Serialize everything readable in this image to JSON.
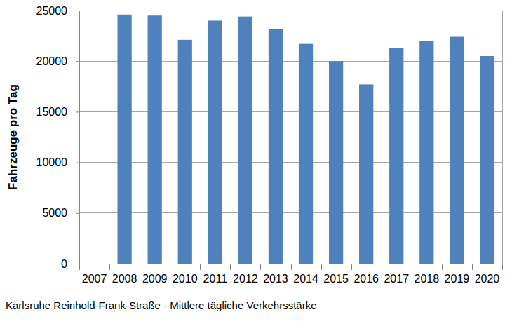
{
  "chart_data": {
    "type": "bar",
    "title": "Karlsruhe Reinhold-Frank-Straße - Mittlere tägliche Verkehrsstärke",
    "y_label": "Fahrzeuge pro Tag",
    "categories": [
      "2007",
      "2008",
      "2009",
      "2010",
      "2011",
      "2012",
      "2013",
      "2014",
      "2015",
      "2016",
      "2017",
      "2018",
      "2019",
      "2020"
    ],
    "values": [
      null,
      24600,
      24500,
      22100,
      24000,
      24400,
      23200,
      21700,
      20000,
      17700,
      21300,
      22000,
      22400,
      20500
    ],
    "color": "#4f81bd",
    "ylim": [
      0,
      25000
    ],
    "yticks": [
      0,
      5000,
      10000,
      15000,
      20000,
      25000
    ],
    "grid": true
  }
}
